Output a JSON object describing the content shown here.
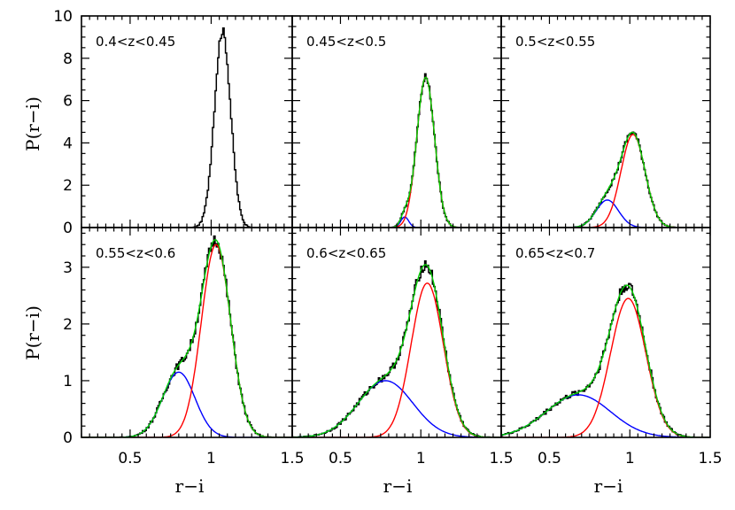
{
  "chart_data": {
    "type": "line",
    "layout": "2x3 grid",
    "xlabel": "r−i",
    "ylabel": "P(r−i)",
    "xlim": [
      0.2,
      1.5
    ],
    "xticks": [
      0.5,
      1,
      1.5
    ],
    "xtick_labels": [
      "0.5",
      "1",
      "1.5"
    ],
    "rows": [
      {
        "ylim": [
          0,
          10
        ],
        "yticks": [
          0,
          2,
          4,
          6,
          8,
          10
        ],
        "ytick_labels": [
          "0",
          "2",
          "4",
          "6",
          "8",
          "10"
        ]
      },
      {
        "ylim": [
          0,
          3.7
        ],
        "yticks": [
          0,
          1,
          2,
          3
        ],
        "ytick_labels": [
          "0",
          "1",
          "2",
          "3"
        ]
      }
    ],
    "series_colors": {
      "histogram": "#000000",
      "blue_component": "#0000ff",
      "red_component": "#ff0000",
      "green_total": "#00cc00"
    },
    "panels": [
      {
        "label": "0.4<z<0.45",
        "components": [
          {
            "color": "black",
            "amplitude": 9.3,
            "mean": 1.07,
            "sigma": 0.05
          }
        ],
        "fit": false
      },
      {
        "label": "0.45<z<0.5",
        "components": [
          {
            "color": "blue",
            "amplitude": 0.5,
            "mean": 0.9,
            "sigma": 0.025
          },
          {
            "color": "red",
            "amplitude": 7.1,
            "mean": 1.03,
            "sigma": 0.055
          }
        ],
        "fit": true
      },
      {
        "label": "0.5<z<0.55",
        "components": [
          {
            "color": "blue",
            "amplitude": 1.3,
            "mean": 0.86,
            "sigma": 0.07
          },
          {
            "color": "red",
            "amplitude": 4.4,
            "mean": 1.02,
            "sigma": 0.075
          }
        ],
        "fit": true
      },
      {
        "label": "0.55<z<0.6",
        "components": [
          {
            "color": "blue",
            "amplitude": 1.15,
            "mean": 0.8,
            "sigma": 0.1
          },
          {
            "color": "red",
            "amplitude": 3.4,
            "mean": 1.03,
            "sigma": 0.09
          }
        ],
        "fit": true
      },
      {
        "label": "0.6<z<0.65",
        "components": [
          {
            "color": "blue",
            "amplitude": 1.0,
            "mean": 0.78,
            "sigma": 0.17
          },
          {
            "color": "red",
            "amplitude": 2.72,
            "mean": 1.04,
            "sigma": 0.1
          }
        ],
        "fit": true
      },
      {
        "label": "0.65<z<0.7",
        "components": [
          {
            "color": "blue",
            "amplitude": 0.75,
            "mean": 0.68,
            "sigma": 0.2
          },
          {
            "color": "red",
            "amplitude": 2.45,
            "mean": 0.99,
            "sigma": 0.11
          }
        ],
        "fit": true
      }
    ]
  }
}
